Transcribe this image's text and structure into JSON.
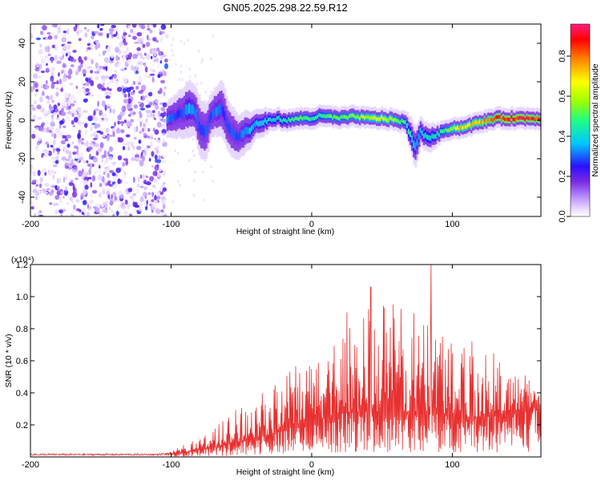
{
  "title": "GN05.2025.298.22.59.R12",
  "chart_data": [
    {
      "type": "heatmap",
      "name": "spectrogram",
      "xlabel": "Height of straight line (km)",
      "ylabel": "Frequency (Hz)",
      "xlim": [
        -200,
        163
      ],
      "ylim": [
        -50,
        50
      ],
      "xticks": [
        -200,
        -100,
        0,
        100
      ],
      "yticks": [
        -40,
        -20,
        0,
        20,
        40
      ],
      "colorbar": {
        "label": "Normalized spectral amplitude",
        "range": [
          0,
          0.96
        ],
        "ticks": [
          0.0,
          0.2,
          0.4,
          0.6,
          0.8
        ],
        "colors": [
          "#ffffff",
          "#e8d8ff",
          "#b890ff",
          "#7a2be0",
          "#2a10ff",
          "#00c8ff",
          "#20ff80",
          "#a0ff00",
          "#ffff00",
          "#ff8000",
          "#ff0000",
          "#ff2080"
        ]
      },
      "noise_region": {
        "x_range": [
          -200,
          -103
        ],
        "f_range": [
          -50,
          50
        ],
        "level": 0.12
      },
      "ridge": {
        "x": [
          -103,
          -98,
          -92,
          -88,
          -84,
          -80,
          -76,
          -72,
          -68,
          -64,
          -60,
          -56,
          -52,
          -48,
          -44,
          -40,
          -35,
          -30,
          -25,
          -20,
          -15,
          -10,
          -5,
          0,
          5,
          10,
          20,
          30,
          40,
          50,
          60,
          66,
          70,
          73,
          75,
          77,
          80,
          85,
          90,
          95,
          100,
          105,
          110,
          115,
          120,
          125,
          130,
          140,
          150,
          163
        ],
        "freq": [
          0,
          2,
          4,
          6,
          6,
          -4,
          -7,
          3,
          5,
          6,
          -3,
          -7,
          -9,
          -6,
          -5,
          -2,
          -1,
          0,
          1,
          0,
          0,
          1,
          1,
          1,
          2,
          2,
          1,
          2,
          1,
          1,
          0,
          -1,
          -8,
          -14,
          -10,
          -6,
          -8,
          -9,
          -7,
          -5,
          -4,
          -4,
          -3,
          -2,
          -1,
          0,
          1,
          1,
          1,
          1
        ],
        "amp": [
          0.35,
          0.3,
          0.3,
          0.4,
          0.35,
          0.3,
          0.3,
          0.3,
          0.35,
          0.3,
          0.3,
          0.3,
          0.3,
          0.35,
          0.4,
          0.4,
          0.4,
          0.45,
          0.45,
          0.45,
          0.5,
          0.55,
          0.55,
          0.5,
          0.5,
          0.55,
          0.55,
          0.6,
          0.65,
          0.7,
          0.6,
          0.5,
          0.45,
          0.4,
          0.4,
          0.4,
          0.45,
          0.45,
          0.5,
          0.55,
          0.65,
          0.75,
          0.75,
          0.8,
          0.8,
          0.85,
          0.9,
          0.95,
          0.95,
          0.9
        ],
        "halfwidth": [
          5,
          6,
          7,
          8,
          7,
          8,
          8,
          6,
          7,
          8,
          7,
          7,
          6,
          6,
          5,
          4,
          4,
          3,
          3,
          3,
          3,
          3,
          3,
          3,
          3,
          3,
          3,
          3,
          3,
          3,
          3,
          3,
          5,
          6,
          5,
          4,
          4,
          4,
          3,
          3,
          3,
          3,
          3,
          3,
          3,
          3,
          3,
          3,
          3,
          3
        ]
      }
    },
    {
      "type": "line",
      "name": "snr",
      "xlabel": "Height of straight line (km)",
      "ylabel": "SNR (10 * v/v)",
      "scale_label": "(x10⁴)",
      "xlim": [
        -200,
        163
      ],
      "ylim": [
        0,
        1.2
      ],
      "xticks": [
        -200,
        -100,
        0,
        100
      ],
      "yticks": [
        0.2,
        0.4,
        0.6,
        0.8,
        1.0,
        1.2
      ],
      "color": "#e83030",
      "envelope": {
        "x": [
          -200,
          -110,
          -100,
          -90,
          -80,
          -70,
          -60,
          -50,
          -40,
          -30,
          -20,
          -10,
          0,
          10,
          20,
          30,
          40,
          50,
          60,
          70,
          80,
          85,
          90,
          100,
          110,
          120,
          130,
          140,
          150,
          163
        ],
        "max": [
          0.02,
          0.02,
          0.03,
          0.08,
          0.12,
          0.18,
          0.25,
          0.35,
          0.38,
          0.42,
          0.5,
          0.58,
          0.62,
          0.75,
          0.8,
          0.9,
          0.95,
          1.0,
          0.95,
          0.9,
          0.92,
          1.2,
          0.9,
          0.82,
          0.78,
          0.72,
          0.65,
          0.55,
          0.52,
          0.48
        ],
        "base": [
          0.015,
          0.015,
          0.02,
          0.03,
          0.05,
          0.06,
          0.08,
          0.1,
          0.12,
          0.14,
          0.17,
          0.2,
          0.22,
          0.25,
          0.27,
          0.28,
          0.28,
          0.28,
          0.28,
          0.28,
          0.28,
          0.28,
          0.27,
          0.26,
          0.25,
          0.25,
          0.26,
          0.28,
          0.3,
          0.32
        ]
      },
      "spikes": [
        {
          "x": 25,
          "y": 0.9
        },
        {
          "x": 42,
          "y": 1.06
        },
        {
          "x": 58,
          "y": 0.95
        },
        {
          "x": 85,
          "y": 1.2
        }
      ]
    }
  ]
}
